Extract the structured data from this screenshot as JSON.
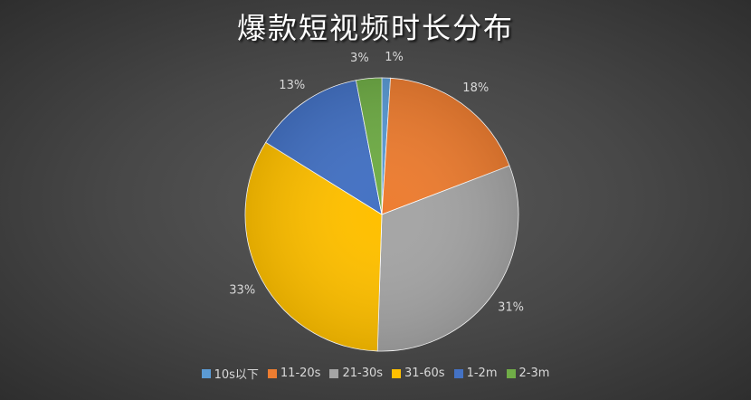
{
  "chart_data": {
    "type": "pie",
    "title": "爆款短视频时长分布",
    "categories": [
      "10s以下",
      "11-20s",
      "21-30s",
      "31-60s",
      "1-2m",
      "2-3m"
    ],
    "values": [
      1,
      18,
      31,
      33,
      13,
      3
    ],
    "labels": [
      "1%",
      "18%",
      "31%",
      "33%",
      "13%",
      "3%"
    ],
    "colors": [
      "#5b9bd5",
      "#ed7d31",
      "#a5a5a5",
      "#ffc000",
      "#4472c4",
      "#70ad47"
    ],
    "start_angle": "top, clockwise",
    "legend_position": "bottom"
  }
}
